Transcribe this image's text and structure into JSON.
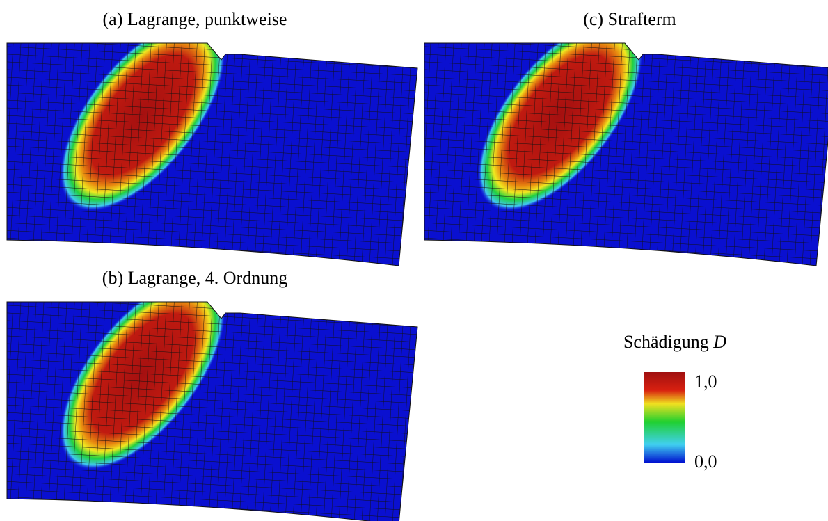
{
  "panels": [
    {
      "label": "(a) Lagrange, punktweise"
    },
    {
      "label": "(c) Strafterm"
    },
    {
      "label": "(b) Lagrange, 4. Ordnung"
    }
  ],
  "colorbar": {
    "title": "Schädigung",
    "symbol": "D",
    "max_label": "1,0",
    "min_label": "0,0"
  }
}
